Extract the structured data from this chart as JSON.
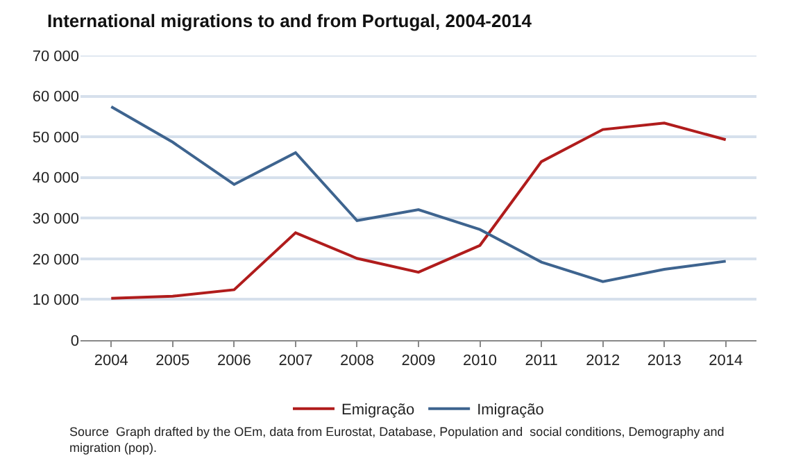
{
  "chart_data": {
    "type": "line",
    "title": "International migrations to and from Portugal, 2004-2014",
    "categories": [
      "2004",
      "2005",
      "2006",
      "2007",
      "2008",
      "2009",
      "2010",
      "2011",
      "2012",
      "2013",
      "2014"
    ],
    "series": [
      {
        "name": "Emigração",
        "color": "#b01c1c",
        "values": [
          10300,
          10800,
          12400,
          26400,
          20100,
          16700,
          23300,
          43900,
          51800,
          53400,
          49300
        ]
      },
      {
        "name": "Imigração",
        "color": "#3e648f",
        "values": [
          57400,
          48700,
          38300,
          46100,
          29400,
          32100,
          27200,
          19200,
          14400,
          17400,
          19400
        ]
      }
    ],
    "ylim": [
      0,
      70000
    ],
    "yticks": [
      {
        "value": 0,
        "label": "0"
      },
      {
        "value": 10000,
        "label": "10 000"
      },
      {
        "value": 20000,
        "label": "20 000"
      },
      {
        "value": 30000,
        "label": "30 000"
      },
      {
        "value": 40000,
        "label": "40 000"
      },
      {
        "value": 50000,
        "label": "50 000"
      },
      {
        "value": 60000,
        "label": "60 000"
      },
      {
        "value": 70000,
        "label": "70 000"
      }
    ],
    "grid": "y",
    "legend": "bottom",
    "marker": "none",
    "line_style": "solid",
    "annotations": [
      "Source  Graph drafted by the OEm, data from Eurostat, Database, Population and  social conditions, Demography and migration (pop)."
    ]
  }
}
